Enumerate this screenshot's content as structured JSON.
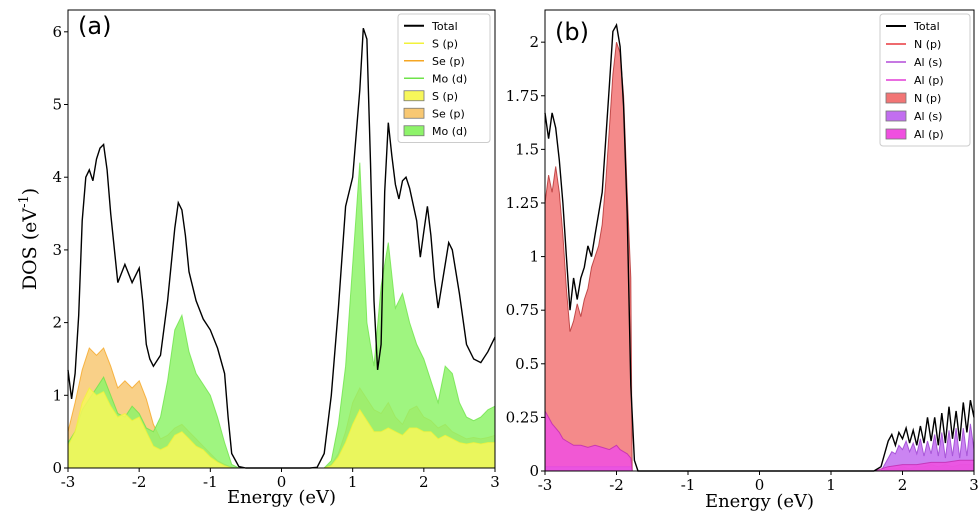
{
  "figure": {
    "ylabel_main": "DOS (eV",
    "ylabel_sup": "-1",
    "ylabel_close": ")"
  },
  "chart_data": [
    {
      "panel_label": "(a)",
      "type": "area",
      "xlabel": "Energy (eV)",
      "ylabel": "DOS (eV-1)",
      "xlim": [
        -3,
        3
      ],
      "ylim": [
        0,
        6.3
      ],
      "xticks": [
        -3,
        -2,
        -1,
        0,
        1,
        2,
        3
      ],
      "xtick_labels": [
        "-3",
        "-2",
        "-1",
        "0",
        "1",
        "2",
        "3"
      ],
      "yticks": [
        0,
        1,
        2,
        3,
        4,
        5,
        6
      ],
      "ytick_labels": [
        "0",
        "1",
        "2",
        "3",
        "4",
        "5",
        "6"
      ],
      "grid": false,
      "legend_position": "top-right",
      "legend": [
        {
          "label": "Total",
          "kind": "line",
          "color": "#000000"
        },
        {
          "label": "S (p)",
          "kind": "line",
          "color": "#f2f23a"
        },
        {
          "label": "Se (p)",
          "kind": "line",
          "color": "#f5a623"
        },
        {
          "label": "Mo (d)",
          "kind": "line",
          "color": "#6fe34a"
        },
        {
          "label": "S (p)",
          "kind": "fill",
          "color": "#f7f75a"
        },
        {
          "label": "Se (p)",
          "kind": "fill",
          "color": "#f8c873"
        },
        {
          "label": "Mo (d)",
          "kind": "fill",
          "color": "#8ef36a"
        }
      ],
      "series": [
        {
          "name": "Se (p)",
          "style": "fill",
          "color": "#f8c873",
          "line": "#f5a623",
          "x": [
            -3,
            -2.9,
            -2.8,
            -2.7,
            -2.6,
            -2.5,
            -2.4,
            -2.3,
            -2.2,
            -2.1,
            -2.0,
            -1.9,
            -1.8,
            -1.7,
            -1.6,
            -1.5,
            -1.4,
            -1.3,
            -1.2,
            -1.1,
            -1.0,
            -0.9,
            -0.8,
            -0.7,
            -0.6,
            -0.5,
            0.5,
            0.6,
            0.7,
            0.8,
            0.9,
            1.0,
            1.1,
            1.2,
            1.3,
            1.4,
            1.5,
            1.6,
            1.7,
            1.8,
            1.9,
            2.0,
            2.1,
            2.2,
            2.3,
            2.4,
            2.5,
            2.6,
            2.7,
            2.8,
            2.9,
            3.0
          ],
          "y": [
            0.5,
            0.9,
            1.35,
            1.65,
            1.55,
            1.65,
            1.4,
            1.1,
            1.2,
            1.1,
            1.2,
            0.95,
            0.6,
            0.4,
            0.45,
            0.55,
            0.6,
            0.5,
            0.4,
            0.3,
            0.2,
            0.1,
            0.05,
            0.01,
            0.0,
            0.0,
            0.0,
            0.0,
            0.05,
            0.2,
            0.5,
            0.9,
            1.1,
            0.95,
            0.8,
            0.75,
            0.9,
            0.7,
            0.6,
            0.8,
            0.85,
            0.7,
            0.65,
            0.55,
            0.6,
            0.5,
            0.45,
            0.4,
            0.42,
            0.4,
            0.42,
            0.45
          ]
        },
        {
          "name": "Mo (d)",
          "style": "fill",
          "color": "#8ef36a",
          "line": "#6fe34a",
          "x": [
            -3,
            -2.9,
            -2.8,
            -2.7,
            -2.6,
            -2.5,
            -2.4,
            -2.3,
            -2.2,
            -2.1,
            -2.0,
            -1.9,
            -1.8,
            -1.7,
            -1.6,
            -1.5,
            -1.4,
            -1.3,
            -1.2,
            -1.1,
            -1.0,
            -0.9,
            -0.8,
            -0.7,
            -0.6,
            -0.5,
            0.5,
            0.6,
            0.7,
            0.8,
            0.9,
            1.0,
            1.1,
            1.2,
            1.3,
            1.4,
            1.5,
            1.6,
            1.7,
            1.8,
            1.9,
            2.0,
            2.1,
            2.2,
            2.3,
            2.4,
            2.5,
            2.6,
            2.7,
            2.8,
            2.9,
            3.0
          ],
          "y": [
            0.35,
            0.5,
            0.8,
            0.95,
            1.1,
            1.25,
            1.0,
            0.75,
            0.7,
            0.85,
            0.75,
            0.55,
            0.5,
            0.7,
            1.2,
            1.9,
            2.1,
            1.6,
            1.3,
            1.15,
            1.0,
            0.7,
            0.35,
            0.05,
            0.0,
            0.0,
            0.0,
            0.0,
            0.1,
            0.6,
            1.4,
            2.8,
            4.2,
            2.0,
            1.4,
            2.5,
            3.1,
            2.2,
            2.4,
            2.0,
            1.7,
            1.5,
            1.2,
            0.9,
            1.4,
            1.3,
            0.9,
            0.7,
            0.65,
            0.7,
            0.8,
            0.85
          ]
        },
        {
          "name": "S (p)",
          "style": "fill",
          "color": "#f7f75a",
          "line": "#f2f23a",
          "x": [
            -3,
            -2.9,
            -2.8,
            -2.7,
            -2.6,
            -2.5,
            -2.4,
            -2.3,
            -2.2,
            -2.1,
            -2.0,
            -1.9,
            -1.8,
            -1.7,
            -1.6,
            -1.5,
            -1.4,
            -1.3,
            -1.2,
            -1.1,
            -1.0,
            -0.9,
            -0.8,
            -0.7,
            -0.6,
            -0.5,
            0.5,
            0.6,
            0.7,
            0.8,
            0.9,
            1.0,
            1.1,
            1.2,
            1.3,
            1.4,
            1.5,
            1.6,
            1.7,
            1.8,
            1.9,
            2.0,
            2.1,
            2.2,
            2.3,
            2.4,
            2.5,
            2.6,
            2.7,
            2.8,
            2.9,
            3.0
          ],
          "y": [
            0.3,
            0.5,
            0.9,
            1.1,
            1.0,
            1.05,
            0.85,
            0.7,
            0.75,
            0.65,
            0.7,
            0.5,
            0.3,
            0.25,
            0.3,
            0.45,
            0.5,
            0.4,
            0.3,
            0.25,
            0.15,
            0.08,
            0.03,
            0.0,
            0.0,
            0.0,
            0.0,
            0.0,
            0.03,
            0.15,
            0.35,
            0.6,
            0.8,
            0.65,
            0.5,
            0.5,
            0.55,
            0.5,
            0.45,
            0.55,
            0.55,
            0.5,
            0.5,
            0.4,
            0.45,
            0.4,
            0.35,
            0.33,
            0.35,
            0.33,
            0.35,
            0.35
          ]
        },
        {
          "name": "Total",
          "style": "line",
          "color": "#000000",
          "x": [
            -3,
            -2.95,
            -2.9,
            -2.85,
            -2.8,
            -2.75,
            -2.7,
            -2.65,
            -2.6,
            -2.55,
            -2.5,
            -2.45,
            -2.4,
            -2.3,
            -2.2,
            -2.1,
            -2.0,
            -1.95,
            -1.9,
            -1.85,
            -1.8,
            -1.7,
            -1.6,
            -1.5,
            -1.45,
            -1.4,
            -1.35,
            -1.3,
            -1.2,
            -1.1,
            -1.0,
            -0.9,
            -0.8,
            -0.75,
            -0.7,
            -0.6,
            -0.5,
            -0.4,
            0.4,
            0.5,
            0.6,
            0.7,
            0.8,
            0.9,
            1.0,
            1.1,
            1.15,
            1.2,
            1.25,
            1.3,
            1.35,
            1.4,
            1.45,
            1.5,
            1.55,
            1.6,
            1.65,
            1.7,
            1.75,
            1.8,
            1.9,
            1.95,
            2.0,
            2.05,
            2.1,
            2.15,
            2.2,
            2.3,
            2.35,
            2.4,
            2.5,
            2.6,
            2.7,
            2.8,
            2.9,
            3.0
          ],
          "y": [
            1.35,
            0.95,
            1.3,
            2.1,
            3.4,
            4.0,
            4.1,
            3.95,
            4.25,
            4.4,
            4.45,
            4.1,
            3.5,
            2.55,
            2.8,
            2.55,
            2.75,
            2.3,
            1.7,
            1.5,
            1.4,
            1.55,
            2.3,
            3.3,
            3.65,
            3.55,
            3.2,
            2.7,
            2.3,
            2.05,
            1.9,
            1.65,
            1.3,
            0.7,
            0.2,
            0.02,
            0.0,
            0.0,
            0.0,
            0.01,
            0.2,
            1.0,
            2.2,
            3.6,
            4.0,
            5.2,
            6.05,
            5.9,
            4.2,
            2.3,
            1.35,
            1.7,
            3.8,
            4.75,
            4.3,
            3.9,
            3.7,
            3.95,
            4.0,
            3.85,
            3.4,
            2.9,
            3.25,
            3.6,
            3.2,
            2.6,
            2.2,
            2.8,
            3.1,
            3.0,
            2.4,
            1.7,
            1.5,
            1.45,
            1.6,
            1.8
          ]
        }
      ]
    },
    {
      "panel_label": "(b)",
      "type": "area",
      "xlabel": "Energy (eV)",
      "xlim": [
        -3,
        3
      ],
      "ylim": [
        0,
        2.15
      ],
      "xticks": [
        -3,
        -2,
        -1,
        0,
        1,
        2,
        3
      ],
      "xtick_labels": [
        "-3",
        "-2",
        "-1",
        "0",
        "1",
        "2",
        "3"
      ],
      "yticks": [
        0,
        0.25,
        0.5,
        0.75,
        1,
        1.25,
        1.5,
        1.75,
        2
      ],
      "ytick_labels": [
        "0",
        "0.25",
        "0.5",
        "0.75",
        "1",
        "1.25",
        "1.5",
        "1.75",
        "2"
      ],
      "grid": false,
      "legend_position": "top-right",
      "legend": [
        {
          "label": "Total",
          "kind": "line",
          "color": "#000000"
        },
        {
          "label": "N (p)",
          "kind": "line",
          "color": "#e8393f"
        },
        {
          "label": "Al (s)",
          "kind": "line",
          "color": "#b44bd8"
        },
        {
          "label": "Al (p)",
          "kind": "line",
          "color": "#e23bd6"
        },
        {
          "label": "N (p)",
          "kind": "fill",
          "color": "#f27575"
        },
        {
          "label": "Al (s)",
          "kind": "fill",
          "color": "#c26ef0"
        },
        {
          "label": "Al (p)",
          "kind": "fill",
          "color": "#f04fe0"
        }
      ],
      "series": [
        {
          "name": "N (p)",
          "style": "fill",
          "color": "#f27575",
          "line": "#b32d2d",
          "x": [
            -3,
            -2.95,
            -2.9,
            -2.85,
            -2.8,
            -2.75,
            -2.7,
            -2.65,
            -2.6,
            -2.55,
            -2.5,
            -2.45,
            -2.4,
            -2.35,
            -2.3,
            -2.25,
            -2.2,
            -2.15,
            -2.1,
            -2.05,
            -2.0,
            -1.95,
            -1.9,
            -1.85,
            -1.8,
            -1.78,
            -1.7,
            -1.65,
            1.6,
            1.7,
            1.8,
            1.9,
            2.0,
            2.1,
            2.2,
            2.3,
            2.4,
            2.5,
            2.6,
            2.7,
            2.8,
            2.9,
            3.0
          ],
          "y": [
            1.25,
            1.38,
            1.3,
            1.42,
            1.3,
            1.1,
            0.85,
            0.65,
            0.7,
            0.78,
            0.72,
            0.8,
            0.85,
            0.95,
            1.0,
            1.05,
            1.15,
            1.35,
            1.6,
            1.85,
            2.0,
            1.95,
            1.75,
            1.3,
            0.9,
            0.0,
            0.0,
            0.0,
            0.0,
            0.0,
            0.01,
            0.01,
            0.02,
            0.01,
            0.02,
            0.02,
            0.03,
            0.02,
            0.03,
            0.02,
            0.03,
            0.03,
            0.03
          ]
        },
        {
          "name": "Al (s)",
          "style": "fill",
          "color": "#c26ef0",
          "line": "#9a3fd0",
          "x": [
            -3,
            -2.9,
            -2.8,
            -2.7,
            -2.6,
            -2.5,
            -2.4,
            -2.3,
            -2.2,
            -2.1,
            -2.0,
            -1.9,
            -1.8,
            -1.78,
            -1.7,
            1.6,
            1.7,
            1.75,
            1.8,
            1.85,
            1.9,
            1.95,
            2.0,
            2.05,
            2.1,
            2.15,
            2.2,
            2.25,
            2.3,
            2.35,
            2.4,
            2.45,
            2.5,
            2.55,
            2.6,
            2.65,
            2.7,
            2.75,
            2.8,
            2.85,
            2.9,
            2.95,
            3.0
          ],
          "y": [
            0.02,
            0.02,
            0.02,
            0.02,
            0.02,
            0.02,
            0.02,
            0.02,
            0.02,
            0.02,
            0.02,
            0.02,
            0.02,
            0.0,
            0.0,
            0.0,
            0.0,
            0.03,
            0.06,
            0.09,
            0.08,
            0.12,
            0.1,
            0.14,
            0.09,
            0.13,
            0.08,
            0.15,
            0.07,
            0.14,
            0.08,
            0.17,
            0.07,
            0.18,
            0.06,
            0.19,
            0.07,
            0.2,
            0.06,
            0.2,
            0.07,
            0.22,
            0.1
          ]
        },
        {
          "name": "Al (p)",
          "style": "fill",
          "color": "#f04fe0",
          "line": "#c02ab0",
          "x": [
            -3,
            -2.95,
            -2.9,
            -2.85,
            -2.8,
            -2.75,
            -2.7,
            -2.6,
            -2.5,
            -2.4,
            -2.3,
            -2.2,
            -2.1,
            -2.0,
            -1.95,
            -1.9,
            -1.85,
            -1.8,
            -1.78,
            -1.7,
            1.6,
            1.8,
            2.0,
            2.2,
            2.4,
            2.6,
            2.8,
            3.0
          ],
          "y": [
            0.28,
            0.25,
            0.22,
            0.2,
            0.18,
            0.15,
            0.14,
            0.12,
            0.12,
            0.11,
            0.12,
            0.11,
            0.1,
            0.12,
            0.1,
            0.09,
            0.08,
            0.06,
            0.0,
            0.0,
            0.0,
            0.02,
            0.03,
            0.03,
            0.04,
            0.04,
            0.05,
            0.05
          ]
        },
        {
          "name": "Total",
          "style": "line",
          "color": "#000000",
          "x": [
            -3,
            -2.95,
            -2.9,
            -2.85,
            -2.8,
            -2.75,
            -2.7,
            -2.65,
            -2.6,
            -2.55,
            -2.5,
            -2.45,
            -2.4,
            -2.35,
            -2.3,
            -2.25,
            -2.2,
            -2.15,
            -2.1,
            -2.05,
            -2.0,
            -1.95,
            -1.9,
            -1.85,
            -1.8,
            -1.75,
            -1.7,
            -1.65,
            1.6,
            1.7,
            1.75,
            1.8,
            1.85,
            1.9,
            1.95,
            2.0,
            2.05,
            2.1,
            2.15,
            2.2,
            2.25,
            2.3,
            2.35,
            2.4,
            2.45,
            2.5,
            2.55,
            2.6,
            2.65,
            2.7,
            2.75,
            2.8,
            2.85,
            2.9,
            2.95,
            3.0
          ],
          "y": [
            1.67,
            1.55,
            1.67,
            1.6,
            1.45,
            1.25,
            1.0,
            0.75,
            0.9,
            0.8,
            0.9,
            0.95,
            1.05,
            1.0,
            1.1,
            1.2,
            1.3,
            1.55,
            1.8,
            2.05,
            2.08,
            1.98,
            1.7,
            1.2,
            0.4,
            0.05,
            0.0,
            0.0,
            0.0,
            0.02,
            0.08,
            0.14,
            0.17,
            0.12,
            0.18,
            0.15,
            0.2,
            0.13,
            0.19,
            0.12,
            0.21,
            0.13,
            0.25,
            0.14,
            0.25,
            0.12,
            0.27,
            0.13,
            0.3,
            0.15,
            0.28,
            0.14,
            0.32,
            0.18,
            0.33,
            0.25
          ]
        }
      ]
    }
  ]
}
